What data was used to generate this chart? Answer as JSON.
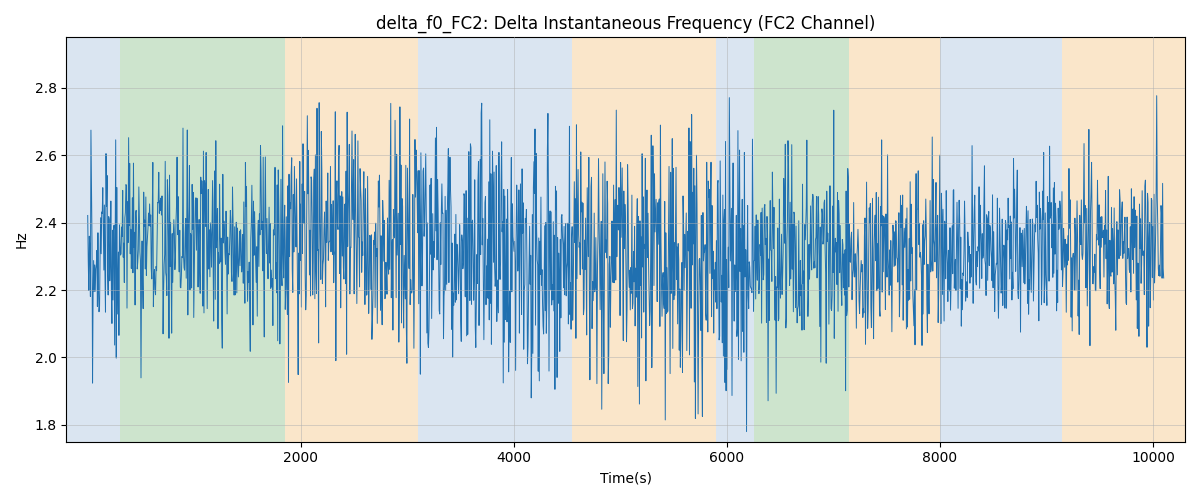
{
  "title": "delta_f0_FC2: Delta Instantaneous Frequency (FC2 Channel)",
  "xlabel": "Time(s)",
  "ylabel": "Hz",
  "xlim": [
    -200,
    10300
  ],
  "ylim": [
    1.75,
    2.95
  ],
  "yticks": [
    1.8,
    2.0,
    2.2,
    2.4,
    2.6,
    2.8
  ],
  "xticks": [
    2000,
    4000,
    6000,
    8000,
    10000
  ],
  "line_color": "#2070b0",
  "line_width": 0.7,
  "background_regions": [
    {
      "xmin": -200,
      "xmax": 300,
      "color": "#adc6e0",
      "alpha": 0.45
    },
    {
      "xmin": 300,
      "xmax": 1850,
      "color": "#90c490",
      "alpha": 0.45
    },
    {
      "xmin": 1850,
      "xmax": 3100,
      "color": "#f5c88a",
      "alpha": 0.45
    },
    {
      "xmin": 3100,
      "xmax": 4550,
      "color": "#adc6e0",
      "alpha": 0.45
    },
    {
      "xmin": 4550,
      "xmax": 5900,
      "color": "#f5c88a",
      "alpha": 0.45
    },
    {
      "xmin": 5900,
      "xmax": 6250,
      "color": "#adc6e0",
      "alpha": 0.45
    },
    {
      "xmin": 6250,
      "xmax": 7150,
      "color": "#90c490",
      "alpha": 0.45
    },
    {
      "xmin": 7150,
      "xmax": 8000,
      "color": "#f5c88a",
      "alpha": 0.45
    },
    {
      "xmin": 8000,
      "xmax": 9150,
      "color": "#adc6e0",
      "alpha": 0.45
    },
    {
      "xmin": 9150,
      "xmax": 10300,
      "color": "#f5c88a",
      "alpha": 0.45
    }
  ],
  "seed": 2023,
  "n_points": 2000,
  "mean": 2.32,
  "figsize": [
    12.0,
    5.0
  ],
  "dpi": 100,
  "grid_color": "#b0b0b0",
  "grid_alpha": 0.7,
  "grid_linewidth": 0.5,
  "title_fontsize": 12,
  "axis_fontsize": 10
}
